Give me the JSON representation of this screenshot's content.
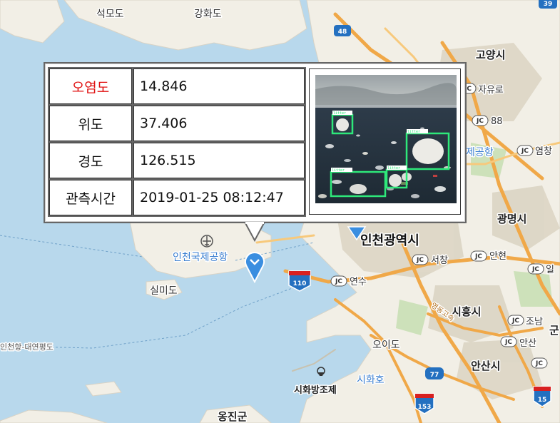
{
  "map": {
    "labels": {
      "seongmodo": "석모도",
      "ganghwado": "강화도",
      "goyang": "고양시",
      "jayuro": "자유로",
      "incheon_airport": "인천국제공항",
      "incheon_metro": "인천광역시",
      "silmido": "실미도",
      "gwangmyeong": "광명시",
      "siheung": "시흥시",
      "ansan": "안산시",
      "oido": "오이도",
      "sihwaho": "시화호",
      "sihwa_seawall": "시화방조제",
      "ongjin": "옹진군",
      "incheon_daeyeonpyeong": "인천항-대연평도",
      "yeonsu": "연수",
      "seochang": "서창",
      "anhyeon": "안현",
      "joam": "조남",
      "ansan_jc": "안산",
      "yeomchang": "염창",
      "gimpo_airport_partial": "제공항",
      "num_88": "88",
      "gun_partial": "군",
      "il_partial": "일",
      "yeongdong": "영동고속"
    },
    "highway_numbers": {
      "h48": "48",
      "h39": "39",
      "h110": "110",
      "h77": "77",
      "h153": "153",
      "h15": "15"
    },
    "jc_label": "JC"
  },
  "popup": {
    "rows": [
      {
        "key": "오염도",
        "value": "14.846"
      },
      {
        "key": "위도",
        "value": "37.406"
      },
      {
        "key": "경도",
        "value": "126.515"
      },
      {
        "key": "관측시간",
        "value": "2019-01-25 08:12:47"
      }
    ],
    "detection_labels": [
      "litter",
      "litter",
      "litter",
      "litter",
      "litter"
    ]
  }
}
